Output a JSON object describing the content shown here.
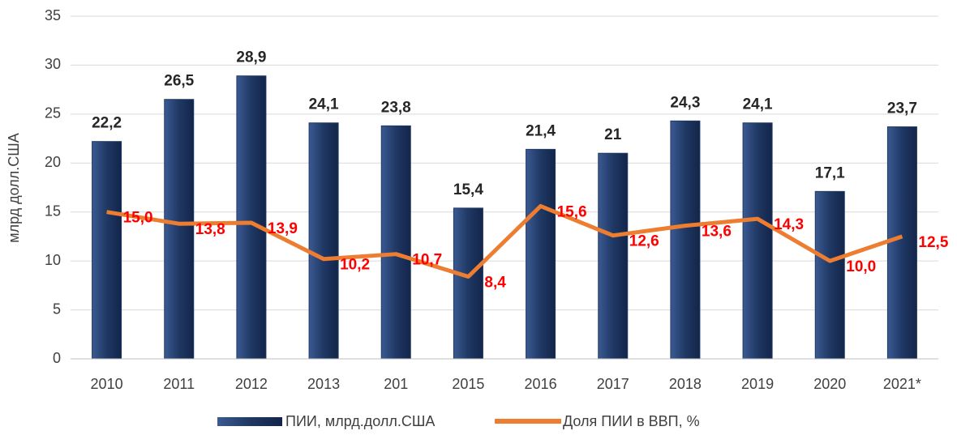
{
  "chart_data": {
    "type": "bar_line",
    "y_axis_label": "млрд долл.США",
    "categories": [
      "2010",
      "2011",
      "2012",
      "2013",
      "201",
      "2015",
      "2016",
      "2017",
      "2018",
      "2019",
      "2020",
      "2021*"
    ],
    "series": [
      {
        "name": "ПИИ, млрд.долл.США",
        "type": "bar",
        "color": "#1f3864",
        "values": [
          22.2,
          26.5,
          28.9,
          24.1,
          23.8,
          15.4,
          21.4,
          21,
          24.3,
          24.1,
          17.1,
          23.7
        ],
        "value_labels": [
          "22,2",
          "26,5",
          "28,9",
          "24,1",
          "23,8",
          "15,4",
          "21,4",
          "21",
          "24,3",
          "24,1",
          "17,1",
          "23,7"
        ]
      },
      {
        "name": "Доля ПИИ в ВВП, %",
        "type": "line",
        "color": "#ed7d31",
        "values": [
          15.0,
          13.8,
          13.9,
          10.2,
          10.7,
          8.4,
          15.6,
          12.6,
          13.6,
          14.3,
          10.0,
          12.5
        ],
        "value_labels": [
          "15,0",
          "13,8",
          "13,9",
          "10,2",
          "10,7",
          "8,4",
          "15,6",
          "12,6",
          "13,6",
          "14,3",
          "10,0",
          "12,5"
        ]
      }
    ],
    "ylim": [
      0,
      35
    ],
    "yticks": [
      0,
      5,
      10,
      15,
      20,
      25,
      30,
      35
    ],
    "grid": true,
    "legend": "bottom"
  }
}
